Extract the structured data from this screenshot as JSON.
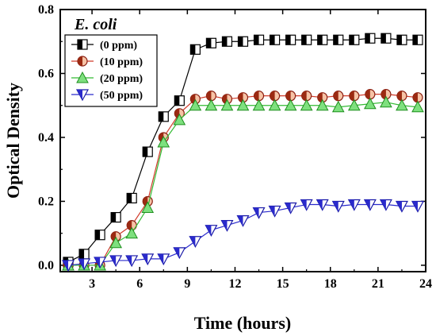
{
  "chart_data": {
    "type": "line",
    "annotation": "E. coli",
    "xlabel": "Time (hours)",
    "ylabel": "Optical Density",
    "xlim": [
      1,
      24
    ],
    "ylim": [
      -0.02,
      0.8
    ],
    "xticks": [
      3,
      6,
      9,
      12,
      15,
      18,
      21,
      24
    ],
    "xtick_labels": [
      "3",
      "6",
      "9",
      "12",
      "15",
      "18",
      "21",
      "24"
    ],
    "yticks": [
      0.0,
      0.2,
      0.4,
      0.6,
      0.8
    ],
    "ytick_labels": [
      "0.0",
      "0.2",
      "0.4",
      "0.6",
      "0.8"
    ],
    "grid": false,
    "legend_position": "top-left",
    "x": [
      1,
      2,
      3,
      4,
      5,
      6,
      7,
      8,
      9,
      10,
      11,
      12,
      13,
      14,
      15,
      16,
      17,
      18,
      19,
      20,
      21,
      22,
      23
    ],
    "series": [
      {
        "name": "(0 ppm)",
        "marker": "square-half",
        "color": "#000000",
        "x": [
          1.5,
          2.5,
          3.5,
          4.5,
          5.5,
          6.5,
          7.5,
          8.5,
          9.5,
          10.5,
          11.5,
          12.5,
          13.5,
          14.5,
          15.5,
          16.5,
          17.5,
          18.5,
          19.5,
          20.5,
          21.5,
          22.5,
          23.5
        ],
        "values": [
          0.01,
          0.035,
          0.095,
          0.15,
          0.21,
          0.355,
          0.465,
          0.515,
          0.675,
          0.695,
          0.7,
          0.7,
          0.705,
          0.705,
          0.705,
          0.705,
          0.705,
          0.705,
          0.705,
          0.71,
          0.71,
          0.705,
          0.705
        ]
      },
      {
        "name": "(10 ppm)",
        "marker": "circle-half",
        "color": "#cc2222",
        "x": [
          1.5,
          2.5,
          3.5,
          4.5,
          5.5,
          6.5,
          7.5,
          8.5,
          9.5,
          10.5,
          11.5,
          12.5,
          13.5,
          14.5,
          15.5,
          16.5,
          17.5,
          18.5,
          19.5,
          20.5,
          21.5,
          22.5,
          23.5
        ],
        "values": [
          0.0,
          0.0,
          0.0,
          0.09,
          0.125,
          0.2,
          0.4,
          0.475,
          0.52,
          0.53,
          0.52,
          0.525,
          0.53,
          0.53,
          0.53,
          0.53,
          0.525,
          0.53,
          0.53,
          0.535,
          0.535,
          0.53,
          0.525
        ]
      },
      {
        "name": "(20 ppm)",
        "marker": "triangle-up",
        "color": "#33cc33",
        "x": [
          1.5,
          2.5,
          3.5,
          4.5,
          5.5,
          6.5,
          7.5,
          8.5,
          9.5,
          10.5,
          11.5,
          12.5,
          13.5,
          14.5,
          15.5,
          16.5,
          17.5,
          18.5,
          19.5,
          20.5,
          21.5,
          22.5,
          23.5
        ],
        "values": [
          0.0,
          0.0,
          0.0,
          0.07,
          0.1,
          0.18,
          0.385,
          0.455,
          0.5,
          0.5,
          0.5,
          0.5,
          0.5,
          0.5,
          0.5,
          0.5,
          0.5,
          0.495,
          0.5,
          0.505,
          0.51,
          0.5,
          0.495
        ]
      },
      {
        "name": "(50 ppm)",
        "marker": "triangle-down",
        "color": "#2222cc",
        "x": [
          1.5,
          2.5,
          3.5,
          4.5,
          5.5,
          6.5,
          7.5,
          8.5,
          9.5,
          10.5,
          11.5,
          12.5,
          13.5,
          14.5,
          15.5,
          16.5,
          17.5,
          18.5,
          19.5,
          20.5,
          21.5,
          22.5,
          23.5
        ],
        "values": [
          0.0,
          0.005,
          0.01,
          0.015,
          0.015,
          0.02,
          0.02,
          0.04,
          0.075,
          0.11,
          0.125,
          0.14,
          0.165,
          0.17,
          0.18,
          0.19,
          0.19,
          0.185,
          0.19,
          0.19,
          0.19,
          0.185,
          0.185
        ]
      }
    ]
  }
}
